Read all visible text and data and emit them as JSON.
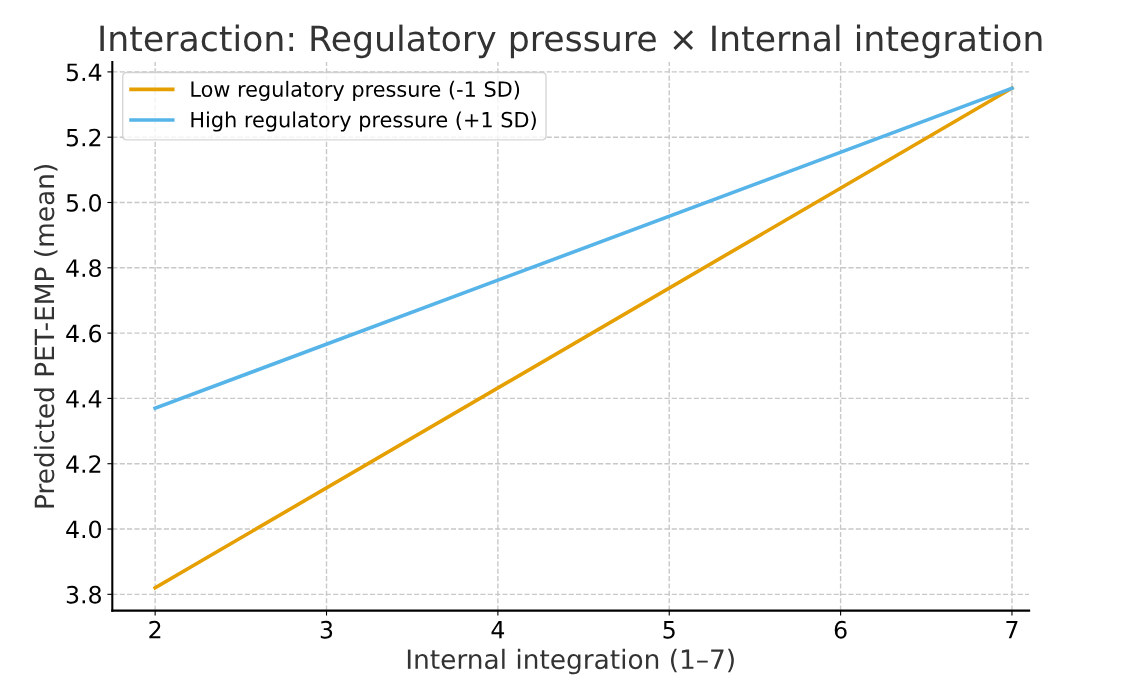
{
  "chart_data": {
    "type": "line",
    "title": "Interaction: Regulatory pressure × Internal integration",
    "xlabel": "Internal integration (1–7)",
    "ylabel": "Predicted PET-EMP (mean)",
    "x": [
      2,
      7
    ],
    "series": [
      {
        "name": "Low regulatory pressure (-1 SD)",
        "color": "#e69f00",
        "values": [
          3.82,
          5.35
        ]
      },
      {
        "name": "High regulatory pressure (+1 SD)",
        "color": "#56b4e9",
        "values": [
          4.37,
          5.35
        ]
      }
    ],
    "xlim": [
      1.75,
      7.1
    ],
    "xticks": [
      2,
      3,
      4,
      5,
      6,
      7
    ],
    "ylim": [
      3.75,
      5.43
    ],
    "yticks": [
      {
        "value": 3.8,
        "label": "3.8"
      },
      {
        "value": 4.0,
        "label": "4.0"
      },
      {
        "value": 4.2,
        "label": "4.2"
      },
      {
        "value": 4.4,
        "label": "4.4"
      },
      {
        "value": 4.6,
        "label": "4.6"
      },
      {
        "value": 4.8,
        "label": "4.8"
      },
      {
        "value": 5.0,
        "label": "5.0"
      },
      {
        "value": 5.2,
        "label": "5.2"
      },
      {
        "value": 5.4,
        "label": "5.4"
      }
    ],
    "grid": true,
    "legend": "top left",
    "marker": "none",
    "line_style": "solid"
  }
}
